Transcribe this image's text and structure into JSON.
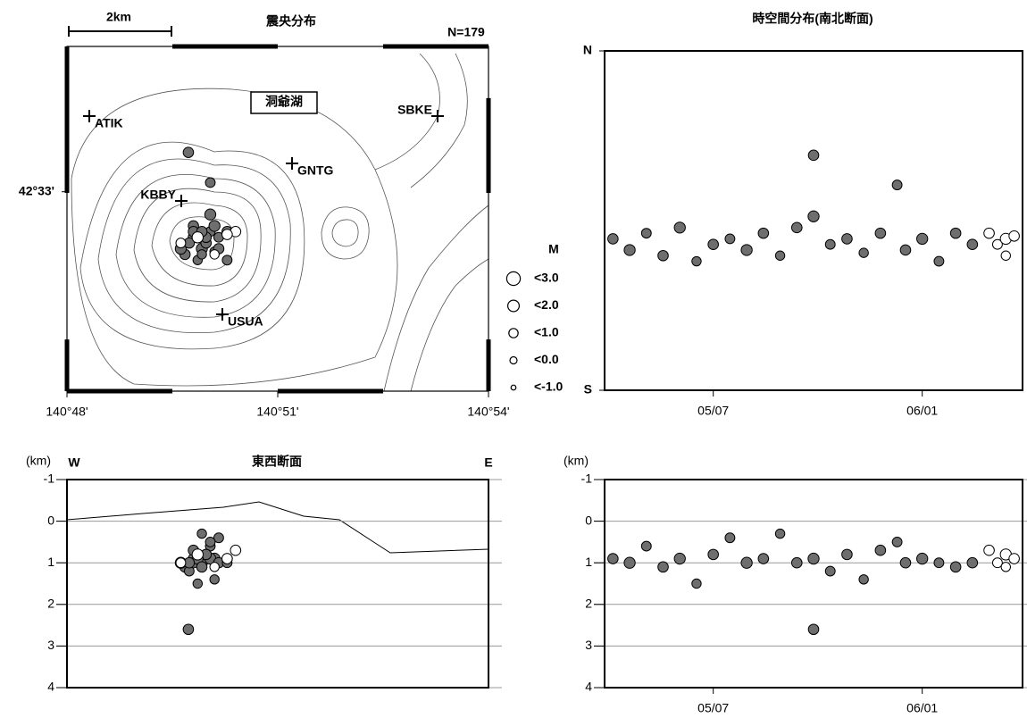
{
  "chart_data": [
    {
      "type": "scatter",
      "title": "震央分布",
      "note": "N=179",
      "scale_label": "2km",
      "lake_label": "洞爺湖",
      "stations": [
        "ATIK",
        "SBKE",
        "GNTG",
        "KBBY",
        "USUA"
      ],
      "xlim": [
        140.8,
        140.9
      ],
      "ylim": [
        42.515,
        42.5755
      ],
      "xticks": [
        {
          "value": 140.8,
          "label": "140°48'"
        },
        {
          "value": 140.85,
          "label": "140°51'"
        },
        {
          "value": 140.9,
          "label": "140°54'"
        }
      ],
      "yticks": [
        {
          "value": 42.55,
          "label": "42°33'"
        }
      ],
      "legend_title": "M",
      "legend_sizes": [
        3,
        2,
        1,
        0,
        -1
      ],
      "legend_labels": [
        "<3.0",
        "<2.0",
        "<1.0",
        "<0.0",
        "<-1.0"
      ],
      "series": [
        {
          "color": "#6e6e6e",
          "x": [
            140.83,
            140.832,
            140.834,
            140.828,
            140.835,
            140.831,
            140.833,
            140.836,
            140.827,
            140.838,
            140.832,
            140.83,
            140.8288,
            140.834,
            140.829,
            140.833,
            140.835,
            140.83,
            140.834,
            140.836,
            140.831,
            140.838,
            140.832,
            140.829
          ],
          "values": [
            42.542,
            42.54,
            42.543,
            42.539,
            42.544,
            42.538,
            42.541,
            42.542,
            42.54,
            42.543,
            42.539,
            42.544,
            42.5569,
            42.546,
            42.541,
            42.542,
            42.5395,
            42.543,
            42.5516,
            42.54,
            42.542,
            42.538,
            42.543,
            42.541
          ],
          "sizes": [
            1.5,
            1.8,
            1.2,
            1.5,
            1.8,
            1,
            1.5,
            1.2,
            1.8,
            1.5,
            1,
            1.5,
            1.5,
            1.8,
            1.2,
            1.5,
            1,
            1.5,
            1.2,
            1.5,
            1.8,
            1.2,
            1.5,
            1.5
          ]
        },
        {
          "color": "#ffffff",
          "x": [
            140.84,
            140.827,
            140.831,
            140.835,
            140.838
          ],
          "values": [
            42.543,
            42.541,
            42.542,
            42.539,
            42.5425
          ],
          "sizes": [
            1.5,
            1.2,
            1.8,
            1,
            1.5
          ]
        }
      ]
    },
    {
      "type": "scatter",
      "title": "時空間分布(南北断面)",
      "xlim": [
        "04/24",
        "06/13"
      ],
      "ylim": [
        42.515,
        42.5755
      ],
      "xticks": [
        "05/07",
        "06/01"
      ],
      "yticks": [
        {
          "value": 42.5755,
          "label": "N"
        },
        {
          "value": 42.515,
          "label": "S"
        }
      ],
      "series": [
        {
          "color": "#6e6e6e",
          "x": [
            "04/25",
            "04/27",
            "04/29",
            "05/01",
            "05/03",
            "05/05",
            "05/07",
            "05/09",
            "05/11",
            "05/13",
            "05/15",
            "05/17",
            "05/19",
            "05/19",
            "05/21",
            "05/23",
            "05/25",
            "05/27",
            "05/29",
            "05/30",
            "06/01",
            "06/03",
            "06/05",
            "06/07"
          ],
          "values": [
            42.542,
            42.54,
            42.543,
            42.539,
            42.544,
            42.538,
            42.541,
            42.542,
            42.54,
            42.543,
            42.539,
            42.544,
            42.5569,
            42.546,
            42.541,
            42.542,
            42.5395,
            42.543,
            42.5516,
            42.54,
            42.542,
            42.538,
            42.543,
            42.541
          ],
          "sizes": [
            1.5,
            1.8,
            1.2,
            1.5,
            1.8,
            1,
            1.5,
            1.2,
            1.8,
            1.5,
            1,
            1.5,
            1.5,
            1.8,
            1.2,
            1.5,
            1,
            1.5,
            1.2,
            1.5,
            1.8,
            1.2,
            1.5,
            1.5
          ]
        },
        {
          "color": "#ffffff",
          "x": [
            "06/09",
            "06/10",
            "06/11",
            "06/11",
            "06/12"
          ],
          "values": [
            42.543,
            42.541,
            42.542,
            42.539,
            42.5425
          ],
          "sizes": [
            1.5,
            1.2,
            1.8,
            1,
            1.5
          ]
        }
      ]
    },
    {
      "type": "scatter",
      "title": "東西断面",
      "y_label": "(km)",
      "x_start_label": "W",
      "x_end_label": "E",
      "xlim": [
        140.8,
        140.9
      ],
      "ylim": [
        -1,
        4
      ],
      "y_reversed": true,
      "grid": true,
      "yticks": [
        -1,
        0,
        1,
        2,
        3,
        4
      ],
      "series": [
        {
          "color": "#6e6e6e",
          "x": [
            140.83,
            140.832,
            140.834,
            140.828,
            140.835,
            140.831,
            140.833,
            140.836,
            140.827,
            140.838,
            140.832,
            140.83,
            140.8288,
            140.834,
            140.829,
            140.833,
            140.835,
            140.83,
            140.834,
            140.836,
            140.831,
            140.838,
            140.832,
            140.829
          ],
          "values": [
            0.9,
            1,
            0.6,
            1.1,
            0.9,
            1.5,
            0.8,
            0.4,
            1,
            0.9,
            0.3,
            1,
            2.6,
            0.9,
            1.2,
            0.8,
            1.4,
            0.7,
            0.5,
            1,
            0.9,
            1,
            1.1,
            1
          ],
          "sizes": [
            1.5,
            1.8,
            1.2,
            1.5,
            1.8,
            1,
            1.5,
            1.2,
            1.8,
            1.5,
            1,
            1.5,
            1.5,
            1.8,
            1.2,
            1.5,
            1,
            1.5,
            1.2,
            1.5,
            1.8,
            1.2,
            1.5,
            1.5
          ]
        },
        {
          "color": "#ffffff",
          "x": [
            140.84,
            140.827,
            140.831,
            140.835,
            140.838
          ],
          "values": [
            0.7,
            1,
            0.8,
            1.1,
            0.9
          ],
          "sizes": [
            1.5,
            1.2,
            1.8,
            1,
            1.5
          ]
        }
      ]
    },
    {
      "type": "scatter",
      "y_label": "(km)",
      "xlim": [
        "04/24",
        "06/13"
      ],
      "ylim": [
        -1,
        4
      ],
      "y_reversed": true,
      "grid": true,
      "xticks": [
        "05/07",
        "06/01"
      ],
      "yticks": [
        -1,
        0,
        1,
        2,
        3,
        4
      ],
      "series": [
        {
          "color": "#6e6e6e",
          "x": [
            "04/25",
            "04/27",
            "04/29",
            "05/01",
            "05/03",
            "05/05",
            "05/07",
            "05/09",
            "05/11",
            "05/13",
            "05/15",
            "05/17",
            "05/19",
            "05/19",
            "05/21",
            "05/23",
            "05/25",
            "05/27",
            "05/29",
            "05/30",
            "06/01",
            "06/03",
            "06/05",
            "06/07"
          ],
          "values": [
            0.9,
            1,
            0.6,
            1.1,
            0.9,
            1.5,
            0.8,
            0.4,
            1,
            0.9,
            0.3,
            1,
            2.6,
            0.9,
            1.2,
            0.8,
            1.4,
            0.7,
            0.5,
            1,
            0.9,
            1,
            1.1,
            1
          ],
          "sizes": [
            1.5,
            1.8,
            1.2,
            1.5,
            1.8,
            1,
            1.5,
            1.2,
            1.8,
            1.5,
            1,
            1.5,
            1.5,
            1.8,
            1.2,
            1.5,
            1,
            1.5,
            1.2,
            1.5,
            1.8,
            1.2,
            1.5,
            1.5
          ]
        },
        {
          "color": "#ffffff",
          "x": [
            "06/09",
            "06/10",
            "06/11",
            "06/11",
            "06/12"
          ],
          "values": [
            0.7,
            1,
            0.8,
            1.1,
            0.9
          ],
          "sizes": [
            1.5,
            1.2,
            1.8,
            1,
            1.5
          ]
        }
      ]
    }
  ]
}
